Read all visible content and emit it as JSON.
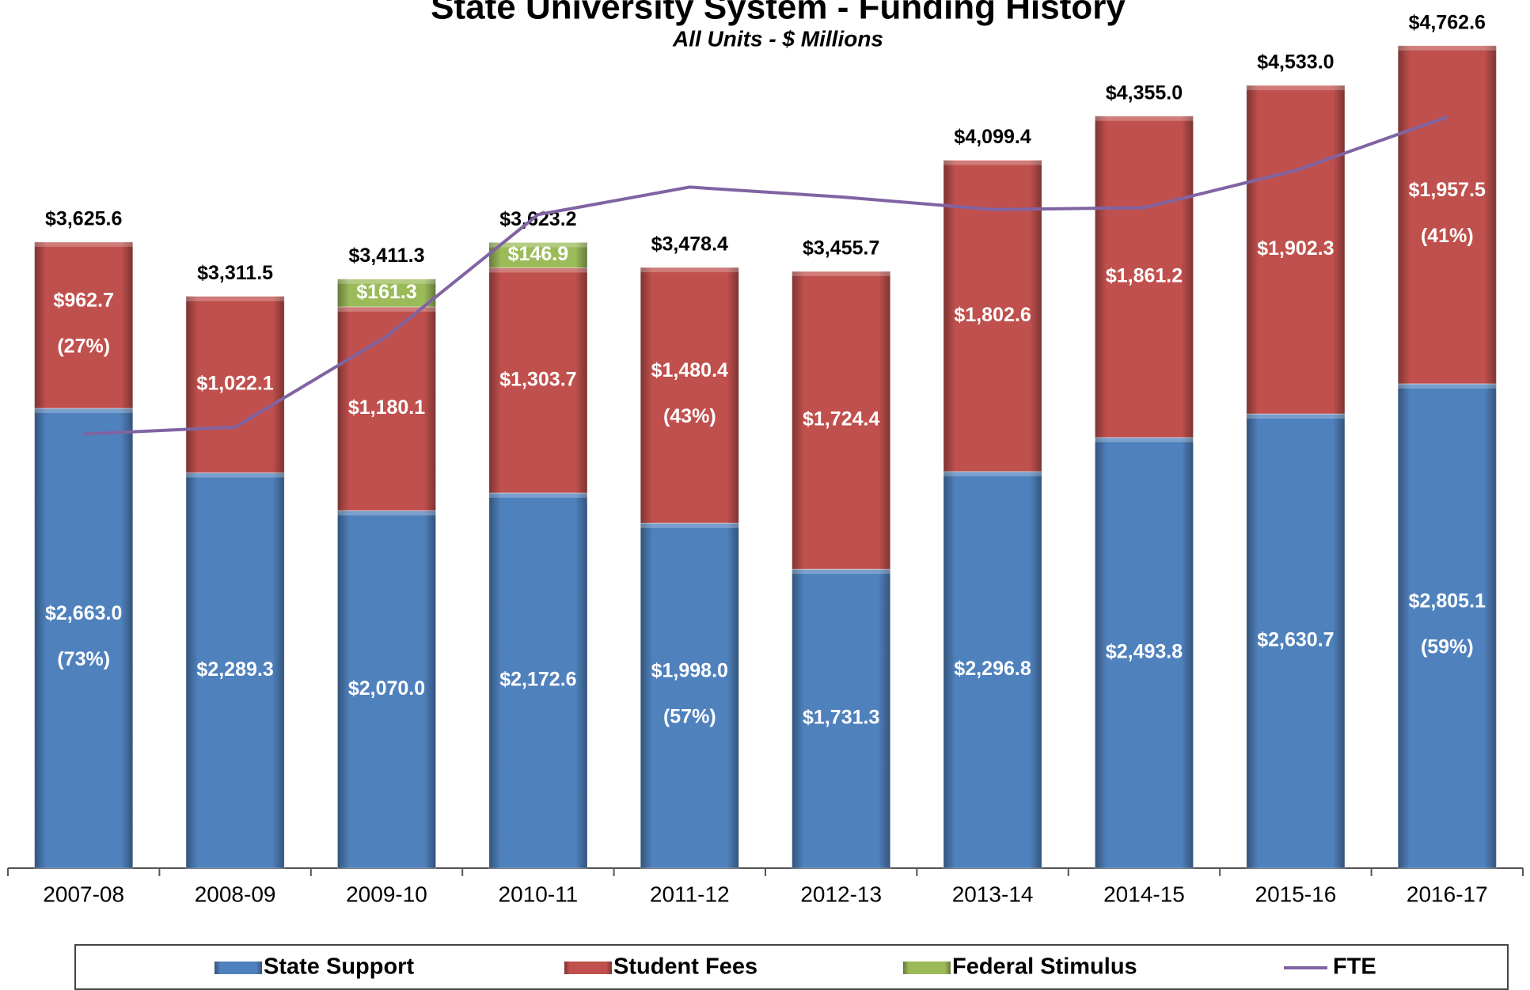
{
  "chart_data": {
    "type": "stacked_bar_line",
    "title": "State University System - Funding History",
    "subtitle": "All Units - $ Millions",
    "categories": [
      "2007-08",
      "2008-09",
      "2009-10",
      "2010-11",
      "2011-12",
      "2012-13",
      "2013-14",
      "2014-15",
      "2015-16",
      "2016-17"
    ],
    "ylim": [
      0,
      5000
    ],
    "series": [
      {
        "name": "State Support",
        "color": "#4f81bd",
        "values": [
          2663.0,
          2289.3,
          2070.0,
          2172.6,
          1998.0,
          1731.3,
          2296.8,
          2493.8,
          2630.7,
          2805.1
        ],
        "value_labels": [
          "$2,663.0",
          "$2,289.3",
          "$2,070.0",
          "$2,172.6",
          "$1,998.0",
          "$1,731.3",
          "$2,296.8",
          "$2,493.8",
          "$2,630.7",
          "$2,805.1"
        ],
        "share_labels": [
          "(73%)",
          null,
          null,
          null,
          "(57%)",
          null,
          null,
          null,
          null,
          "(59%)"
        ]
      },
      {
        "name": "Student Fees",
        "color": "#c0504d",
        "values": [
          962.7,
          1022.1,
          1180.1,
          1303.7,
          1480.4,
          1724.4,
          1802.6,
          1861.2,
          1902.3,
          1957.5
        ],
        "value_labels": [
          "$962.7",
          "$1,022.1",
          "$1,180.1",
          "$1,303.7",
          "$1,480.4",
          "$1,724.4",
          "$1,802.6",
          "$1,861.2",
          "$1,902.3",
          "$1,957.5"
        ],
        "share_labels": [
          "(27%)",
          null,
          null,
          null,
          "(43%)",
          null,
          null,
          null,
          null,
          "(41%)"
        ]
      },
      {
        "name": "Federal Stimulus",
        "color": "#9bbb59",
        "values": [
          null,
          null,
          161.3,
          146.9,
          null,
          null,
          null,
          null,
          null,
          null
        ],
        "value_labels": [
          null,
          null,
          "$161.3",
          "$146.9",
          null,
          null,
          null,
          null,
          null,
          null
        ]
      },
      {
        "name": "FTE",
        "color": "#8064a2",
        "kind": "line",
        "values": [
          2514,
          2554,
          3079,
          3785,
          3944,
          3887,
          3814,
          3825,
          4040,
          4350
        ]
      }
    ],
    "total_labels": [
      "$3,625.6",
      "$3,311.5",
      "$3,411.3",
      "$3,623.2",
      "$3,478.4",
      "$3,455.7",
      "$4,099.4",
      "$4,355.0",
      "$4,533.0",
      "$4,762.6"
    ]
  }
}
